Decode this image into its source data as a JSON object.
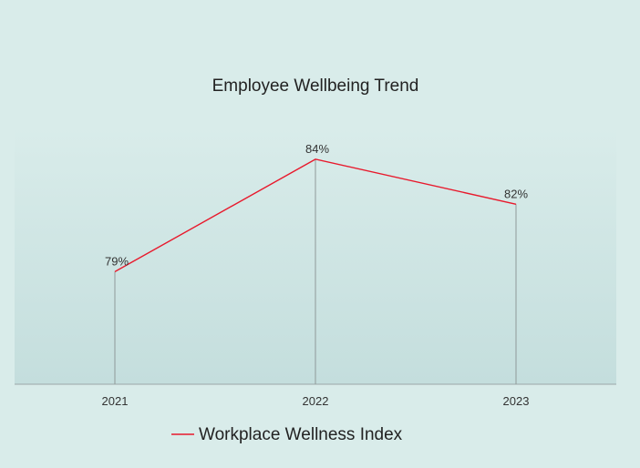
{
  "chart_data": {
    "type": "line",
    "title": "Employee Wellbeing Trend",
    "categories": [
      "2021",
      "2022",
      "2023"
    ],
    "series": [
      {
        "name": "Workplace Wellness Index",
        "values": [
          79,
          84,
          82
        ],
        "color": "#e8192c"
      }
    ],
    "data_labels": [
      "79%",
      "84%",
      "82%"
    ],
    "ylim": [
      74,
      84.6
    ],
    "grid": false,
    "drop_lines": true,
    "legend_position": "bottom"
  }
}
